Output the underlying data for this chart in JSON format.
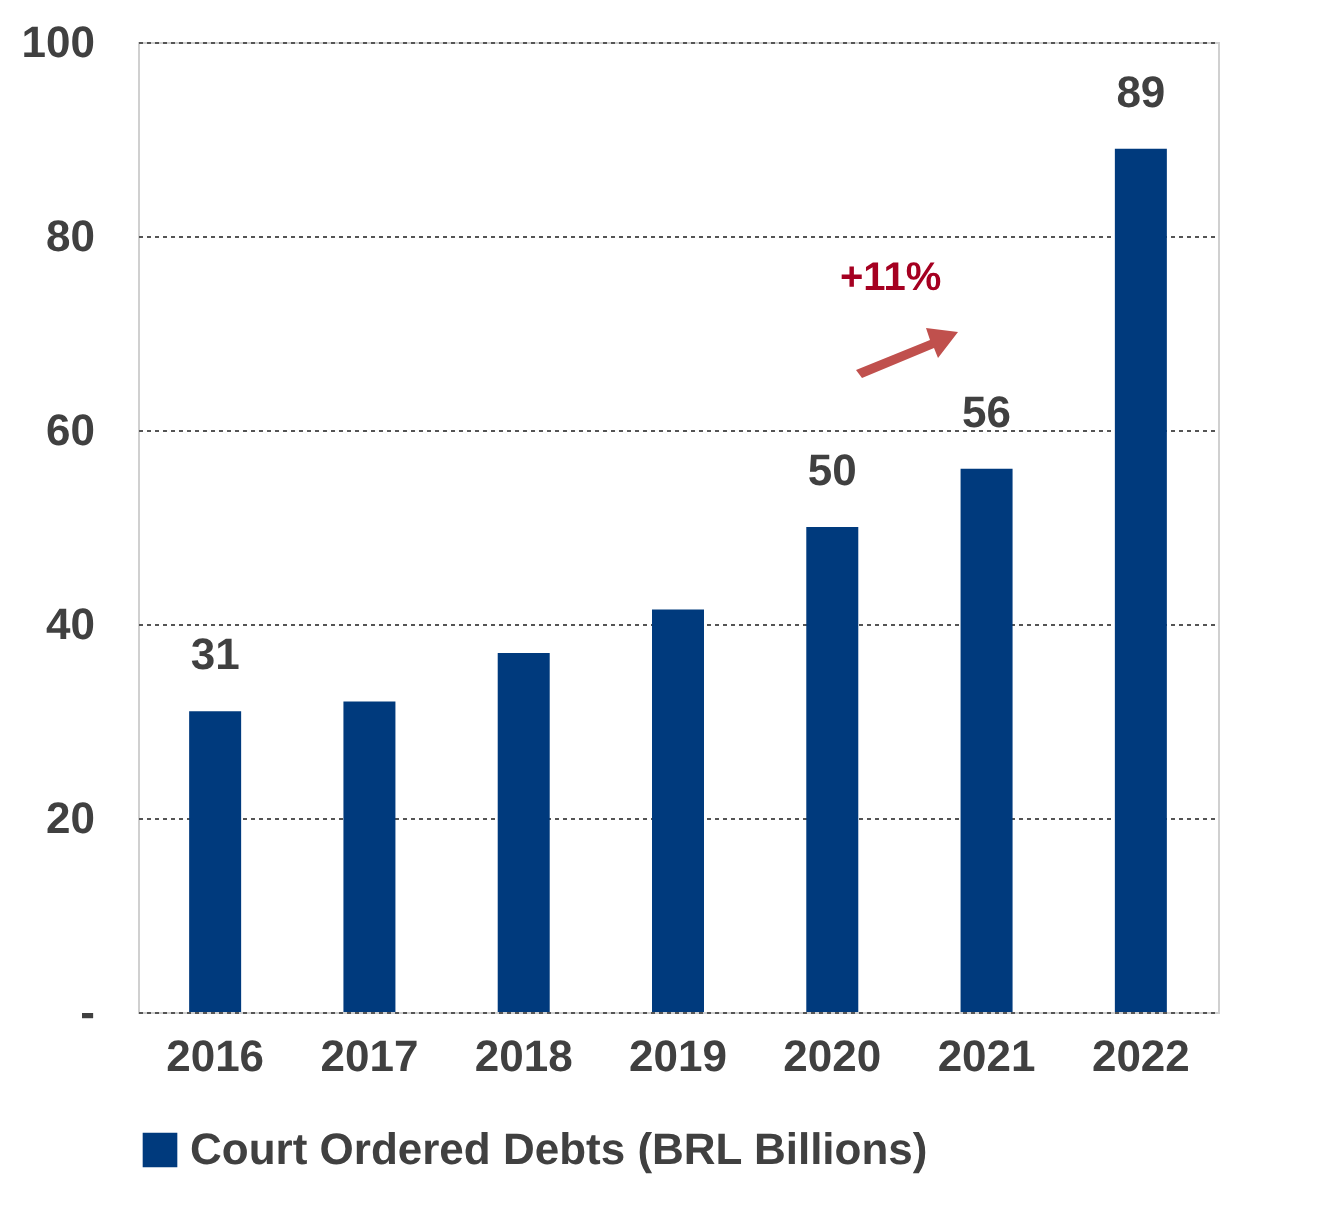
{
  "chart_data": {
    "type": "bar",
    "categories": [
      "2016",
      "2017",
      "2018",
      "2019",
      "2020",
      "2021",
      "2022"
    ],
    "series": [
      {
        "name": "Court Ordered Debts (BRL Billions)",
        "color": "#003a7d",
        "values": [
          31,
          32,
          37,
          41.5,
          50,
          56,
          89
        ]
      }
    ],
    "value_labels": [
      "31",
      null,
      null,
      null,
      "50",
      "56",
      "89"
    ],
    "ylim": [
      0,
      100
    ],
    "yticks": [
      {
        "value": 0,
        "label": "-"
      },
      20,
      40,
      60,
      80,
      100
    ],
    "grid": "y",
    "legend": "bottom",
    "annotations": [
      "+11%"
    ]
  }
}
